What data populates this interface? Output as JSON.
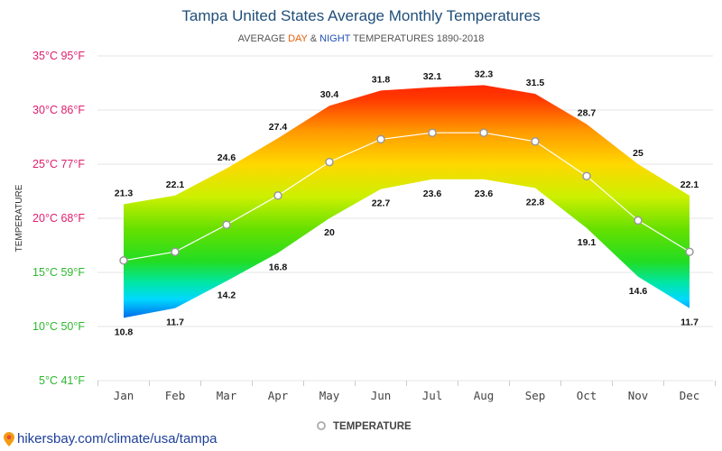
{
  "footer": {
    "site": "hikersbay.com/climate/usa/tampa",
    "icon": "map-pin-icon"
  },
  "chart_data": {
    "type": "area",
    "title": "Tampa United States Average Monthly Temperatures",
    "subtitle": {
      "prefix": "AVERAGE ",
      "day": "DAY",
      "middle": " & ",
      "night": "NIGHT",
      "suffix": " TEMPERATURES 1890-2018"
    },
    "ylabel": "TEMPERATURE",
    "ylim": [
      5,
      35
    ],
    "yticks": [
      {
        "value": 35,
        "label": "35°C 95°F",
        "color": "#e0206e"
      },
      {
        "value": 30,
        "label": "30°C 86°F",
        "color": "#e0206e"
      },
      {
        "value": 25,
        "label": "25°C 77°F",
        "color": "#e0206e"
      },
      {
        "value": 20,
        "label": "20°C 68°F",
        "color": "#e0206e"
      },
      {
        "value": 15,
        "label": "15°C 59°F",
        "color": "#2fb82f"
      },
      {
        "value": 10,
        "label": "10°C 50°F",
        "color": "#2fb82f"
      },
      {
        "value": 5,
        "label": "5°C 41°F",
        "color": "#2fb82f"
      }
    ],
    "categories": [
      "Jan",
      "Feb",
      "Mar",
      "Apr",
      "May",
      "Jun",
      "Jul",
      "Aug",
      "Sep",
      "Oct",
      "Nov",
      "Dec"
    ],
    "day": [
      21.3,
      22.1,
      24.6,
      27.4,
      30.4,
      31.8,
      32.1,
      32.3,
      31.5,
      28.7,
      25,
      22.1
    ],
    "night": [
      10.8,
      11.7,
      14.2,
      16.8,
      20,
      22.7,
      23.6,
      23.6,
      22.8,
      19.1,
      14.6,
      11.7
    ],
    "mean": [
      16.1,
      16.9,
      19.4,
      22.1,
      25.2,
      27.3,
      27.9,
      27.9,
      27.1,
      23.9,
      19.8,
      16.9
    ],
    "legend": {
      "label": "TEMPERATURE",
      "placement": "bottom"
    },
    "grid": true,
    "colors": {
      "gradient": [
        {
          "value": 35,
          "color": "#ff0000"
        },
        {
          "value": 31,
          "color": "#ff3a00"
        },
        {
          "value": 28,
          "color": "#ff9a00"
        },
        {
          "value": 25,
          "color": "#ffd800"
        },
        {
          "value": 22,
          "color": "#ccf000"
        },
        {
          "value": 19,
          "color": "#66e000"
        },
        {
          "value": 16,
          "color": "#22dd22"
        },
        {
          "value": 14,
          "color": "#00e6a8"
        },
        {
          "value": 12.5,
          "color": "#00d8ff"
        },
        {
          "value": 11,
          "color": "#0077ee"
        },
        {
          "value": 9,
          "color": "#0022bb"
        }
      ],
      "mean_line": "#ffffff",
      "mean_marker_stroke": "#999999",
      "grid": "#e6e6e6"
    }
  }
}
